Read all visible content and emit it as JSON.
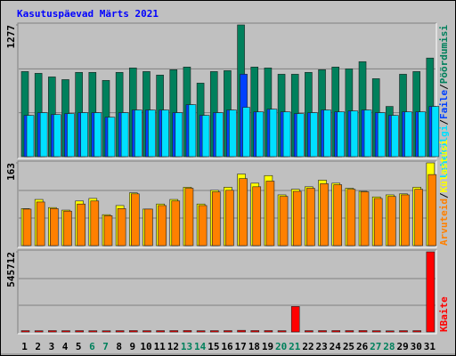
{
  "title": "Kasutuspäevad Märts 2021",
  "categories": [
    "1",
    "2",
    "3",
    "4",
    "5",
    "6",
    "7",
    "8",
    "9",
    "10",
    "11",
    "12",
    "13",
    "14",
    "15",
    "16",
    "17",
    "18",
    "19",
    "20",
    "21",
    "22",
    "23",
    "24",
    "25",
    "26",
    "27",
    "28",
    "29",
    "30",
    "31"
  ],
  "category_colors": [
    "#000000",
    "#000000",
    "#000000",
    "#000000",
    "#000000",
    "#00805c",
    "#00805c",
    "#000000",
    "#000000",
    "#000000",
    "#000000",
    "#000000",
    "#00805c",
    "#00805c",
    "#000000",
    "#000000",
    "#000000",
    "#000000",
    "#000000",
    "#00805c",
    "#00805c",
    "#000000",
    "#000000",
    "#000000",
    "#000000",
    "#000000",
    "#00805c",
    "#00805c",
    "#000000",
    "#000000",
    "#000000"
  ],
  "legend_separator": "/",
  "chart_data": [
    {
      "type": "bar",
      "ylim": [
        0,
        1277
      ],
      "yticks": [
        1277
      ],
      "series": [
        {
          "name": "Pöördumisi",
          "color": "#00805c",
          "values": [
            825,
            808,
            773,
            747,
            817,
            817,
            739,
            817,
            860,
            825,
            791,
            843,
            869,
            713,
            825,
            834,
            1277,
            869,
            860,
            799,
            799,
            817,
            843,
            869,
            851,
            921,
            756,
            487,
            799,
            825,
            956
          ]
        },
        {
          "name": "Faile",
          "color": "#0040ff",
          "values": [
            400,
            426,
            408,
            417,
            426,
            426,
            382,
            426,
            452,
            452,
            452,
            426,
            504,
            400,
            426,
            452,
            799,
            434,
            460,
            434,
            417,
            426,
            452,
            434,
            443,
            452,
            426,
            400,
            434,
            434,
            487
          ]
        },
        {
          "name": "Lehekülgi",
          "color": "#00e0ff",
          "values": [
            400,
            426,
            408,
            417,
            426,
            426,
            382,
            426,
            452,
            452,
            452,
            426,
            504,
            400,
            426,
            452,
            478,
            434,
            460,
            434,
            417,
            426,
            452,
            434,
            443,
            452,
            426,
            400,
            434,
            434,
            487
          ]
        }
      ]
    },
    {
      "type": "bar",
      "ylim": [
        0,
        163
      ],
      "yticks": [
        163
      ],
      "series": [
        {
          "name": "Külastusi",
          "color": "#ffff00",
          "values": [
            73,
            91,
            75,
            70,
            88,
            93,
            61,
            79,
            104,
            72,
            82,
            91,
            115,
            82,
            109,
            115,
            141,
            123,
            138,
            100,
            111,
            116,
            129,
            123,
            113,
            107,
            96,
            100,
            102,
            115,
            163
          ]
        },
        {
          "name": "Arvuteid",
          "color": "#ff8000",
          "values": [
            72,
            86,
            73,
            68,
            82,
            88,
            59,
            73,
            102,
            72,
            79,
            88,
            113,
            79,
            106,
            109,
            132,
            116,
            127,
            97,
            107,
            113,
            122,
            120,
            111,
            106,
            93,
            97,
            100,
            111,
            140
          ]
        }
      ]
    },
    {
      "type": "bar",
      "ylim": [
        0,
        545712
      ],
      "yticks": [
        545712
      ],
      "series": [
        {
          "name": "KBaite",
          "color": "#ff0000",
          "values": [
            9000,
            8500,
            9200,
            8800,
            9100,
            8700,
            8300,
            9000,
            9400,
            8900,
            9100,
            9300,
            9800,
            8600,
            9000,
            9200,
            11000,
            9500,
            9400,
            8900,
            173600,
            9000,
            9300,
            9400,
            9200,
            9600,
            8800,
            7600,
            9000,
            9100,
            545712
          ]
        }
      ]
    }
  ]
}
